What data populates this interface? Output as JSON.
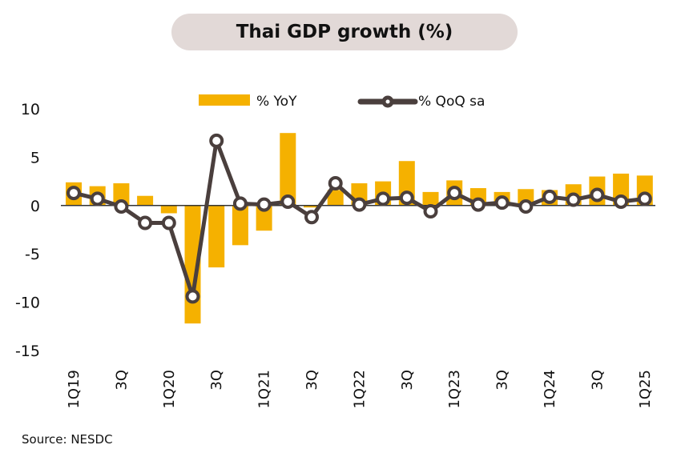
{
  "title": "Thai GDP growth (%)",
  "source": "Source: NESDC",
  "colors": {
    "yoy": "#f5b100",
    "qoq": "#4a3f3d",
    "marker_fill": "#ffffff",
    "axis": "#333333",
    "title_bg": "#e2d9d7"
  },
  "chart_data": {
    "type": "bar",
    "title": "Thai GDP growth (%)",
    "xlabel": "",
    "ylabel": "",
    "ylim": [
      -15,
      10
    ],
    "yticks": [
      10,
      5,
      0,
      -5,
      -10,
      -15
    ],
    "ytick_labels": [
      "10",
      "5",
      "0",
      "-5",
      "-10",
      "-15"
    ],
    "legend_position": "top-center",
    "grid": false,
    "categories": [
      "1Q19",
      "2Q19",
      "3Q19",
      "4Q19",
      "1Q20",
      "2Q20",
      "3Q20",
      "4Q20",
      "1Q21",
      "2Q21",
      "3Q21",
      "4Q21",
      "1Q22",
      "2Q22",
      "3Q22",
      "4Q22",
      "1Q23",
      "2Q23",
      "3Q23",
      "4Q23",
      "1Q24",
      "2Q24",
      "3Q24",
      "4Q24",
      "1Q25"
    ],
    "xtick_labels": [
      "1Q19",
      "",
      "3Q",
      "",
      "1Q20",
      "",
      "3Q",
      "",
      "1Q21",
      "",
      "3Q",
      "",
      "1Q22",
      "",
      "3Q",
      "",
      "1Q23",
      "",
      "3Q",
      "",
      "1Q24",
      "",
      "3Q",
      "",
      "1Q25"
    ],
    "series": [
      {
        "name": "% YoY",
        "type": "bar",
        "values": [
          2.4,
          2.0,
          2.3,
          1.0,
          -0.8,
          -12.2,
          -6.4,
          -4.1,
          -2.6,
          7.5,
          -0.2,
          1.6,
          2.3,
          2.5,
          4.6,
          1.4,
          2.6,
          1.8,
          1.4,
          1.7,
          1.6,
          2.2,
          3.0,
          3.3,
          3.1
        ]
      },
      {
        "name": "% QoQ sa",
        "type": "line",
        "values": [
          1.3,
          0.7,
          -0.1,
          -1.8,
          -1.8,
          -9.4,
          6.7,
          0.2,
          0.1,
          0.4,
          -1.2,
          2.3,
          0.1,
          0.7,
          0.8,
          -0.6,
          1.3,
          0.1,
          0.3,
          -0.1,
          0.9,
          0.6,
          1.1,
          0.4,
          0.7
        ]
      }
    ]
  }
}
